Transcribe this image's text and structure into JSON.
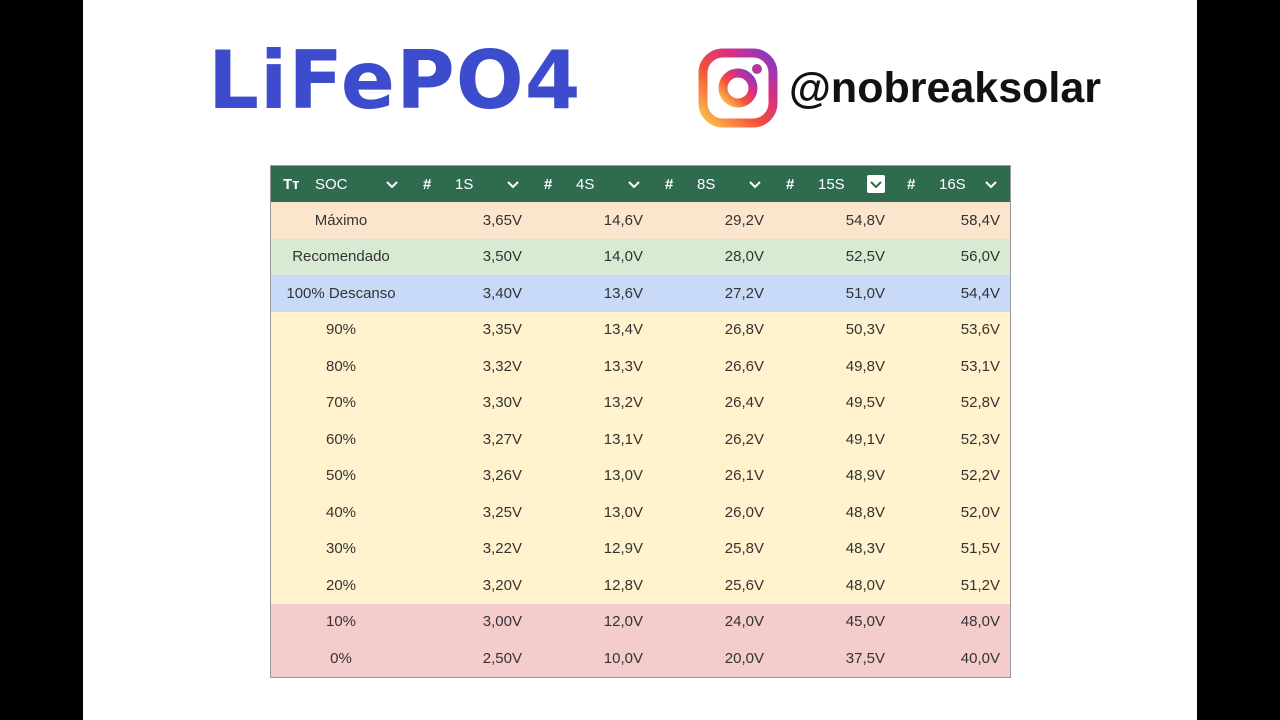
{
  "header": {
    "title": "LiFePO4",
    "handle": "@nobreaksolar"
  },
  "table": {
    "columns": [
      {
        "icon": "Tт",
        "label": "SOC"
      },
      {
        "icon": "#",
        "label": "1S"
      },
      {
        "icon": "#",
        "label": "4S"
      },
      {
        "icon": "#",
        "label": "8S"
      },
      {
        "icon": "#",
        "label": "15S"
      },
      {
        "icon": "#",
        "label": "16S"
      }
    ],
    "rows": [
      [
        "Máximo",
        "3,65V",
        "14,6V",
        "29,2V",
        "54,8V",
        "58,4V"
      ],
      [
        "Recomendado",
        "3,50V",
        "14,0V",
        "28,0V",
        "52,5V",
        "56,0V"
      ],
      [
        "100% Descanso",
        "3,40V",
        "13,6V",
        "27,2V",
        "51,0V",
        "54,4V"
      ],
      [
        "90%",
        "3,35V",
        "13,4V",
        "26,8V",
        "50,3V",
        "53,6V"
      ],
      [
        "80%",
        "3,32V",
        "13,3V",
        "26,6V",
        "49,8V",
        "53,1V"
      ],
      [
        "70%",
        "3,30V",
        "13,2V",
        "26,4V",
        "49,5V",
        "52,8V"
      ],
      [
        "60%",
        "3,27V",
        "13,1V",
        "26,2V",
        "49,1V",
        "52,3V"
      ],
      [
        "50%",
        "3,26V",
        "13,0V",
        "26,1V",
        "48,9V",
        "52,2V"
      ],
      [
        "40%",
        "3,25V",
        "13,0V",
        "26,0V",
        "48,8V",
        "52,0V"
      ],
      [
        "30%",
        "3,22V",
        "12,9V",
        "25,8V",
        "48,3V",
        "51,5V"
      ],
      [
        "20%",
        "3,20V",
        "12,8V",
        "25,6V",
        "48,0V",
        "51,2V"
      ],
      [
        "10%",
        "3,00V",
        "12,0V",
        "24,0V",
        "45,0V",
        "48,0V"
      ],
      [
        "0%",
        "2,50V",
        "10,0V",
        "20,0V",
        "37,5V",
        "40,0V"
      ]
    ]
  }
}
